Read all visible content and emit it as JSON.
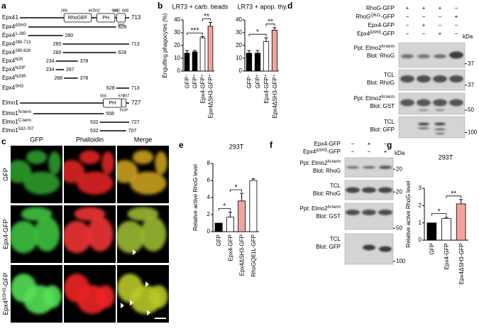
{
  "panel_labels": [
    "a",
    "b",
    "c",
    "d",
    "e",
    "f",
    "g"
  ],
  "constructs": {
    "epx4": {
      "name": {
        "pre": "Epx4"
      },
      "start": 1,
      "end": 713,
      "ticks": [
        288,
        467,
        502,
        620,
        632,
        688
      ],
      "domains": [
        {
          "label": "RhoGEF",
          "from": 288,
          "to": 467
        },
        {
          "label": "PH",
          "from": 502,
          "to": 620
        },
        {
          "label": "SH3",
          "from": 632,
          "to": 688
        }
      ],
      "rows": [
        {
          "name": {
            "pre": "Epx4",
            "sup": "ΔSH3"
          },
          "start": null,
          "end": 628
        },
        {
          "name": {
            "pre": "Epx4",
            "sup": "1-280"
          },
          "start": null,
          "end": 280
        },
        {
          "name": {
            "pre": "Epx4",
            "sup": "280-713"
          },
          "start": 280,
          "end": 713
        },
        {
          "name": {
            "pre": "Epx4",
            "sup": "280-628"
          },
          "start": 280,
          "end": 628
        },
        {
          "name": {
            "pre": "Epx4",
            "sup": "N20"
          },
          "start": 234,
          "end": 378
        },
        {
          "name": {
            "pre": "Epx4",
            "sup": "N20F"
          },
          "start": 234,
          "end": 287
        },
        {
          "name": {
            "pre": "Epx4",
            "sup": "N20R"
          },
          "start": 288,
          "end": 378
        },
        {
          "name": {
            "pre": "Epx4",
            "sup": "SH3"
          },
          "start": 628,
          "end": 713
        }
      ]
    },
    "elmo1": {
      "name": {
        "pre": "Elmo1"
      },
      "start": 1,
      "end": 727,
      "ticks": [
        555,
        676,
        707
      ],
      "domains": [
        {
          "label": "PH",
          "from": 555,
          "to": 676
        },
        {
          "label": "PxxP",
          "from": 676,
          "to": 707
        }
      ],
      "rows": [
        {
          "name": {
            "pre": "Elmo1",
            "sup": "N-term"
          },
          "start": null,
          "end": 558
        },
        {
          "name": {
            "pre": "Elmo1",
            "sup": "C-term"
          },
          "start": 532,
          "end": 727
        },
        {
          "name": {
            "pre": "Elmo1",
            "sup": "532-707"
          },
          "start": 532,
          "end": 707
        }
      ]
    }
  },
  "micrographs": {
    "columns": [
      "GFP",
      "Phalloidin",
      "Merge"
    ],
    "rows": [
      {
        "pre": "GFP"
      },
      {
        "pre": "Epx4-GFP"
      },
      {
        "pre": "Epx4",
        "sup": "ΔSH3",
        "post": "-GFP"
      }
    ]
  },
  "blot_d": {
    "unit": "kDa",
    "header": [
      {
        "label": {
          "pre": "RhoG-GFP"
        },
        "signs": [
          "+",
          "+",
          "+",
          "−"
        ]
      },
      {
        "label": {
          "pre": "RhoG",
          "sup": "Q61L",
          "post": "-GFP"
        },
        "signs": [
          "−",
          "−",
          "−",
          "+"
        ]
      },
      {
        "label": {
          "pre": "Epx4-GFP"
        },
        "signs": [
          "−",
          "+",
          "−",
          "−"
        ]
      },
      {
        "label": {
          "pre": "Epx4",
          "sup": "ΔSH3",
          "post": "-GFP"
        },
        "signs": [
          "−",
          "−",
          "+",
          "−"
        ]
      }
    ],
    "blots": [
      {
        "lines": [
          {
            "pre": "Ppt: Elmo2",
            "sup": "N-term"
          },
          {
            "pre": "Blot: RhoG"
          }
        ],
        "marker": 37
      },
      {
        "lines": [
          {
            "pre": "TCL"
          },
          {
            "pre": "Blot: RhoG"
          }
        ],
        "marker": 37
      },
      {
        "lines": [
          {
            "pre": "Ppt: Elmo2",
            "sup": "N-term"
          },
          {
            "pre": "Blot: GST"
          }
        ],
        "marker": 50
      },
      {
        "lines": [
          {
            "pre": "TCL"
          },
          {
            "pre": "Blot: GFP"
          }
        ],
        "marker": 100
      }
    ]
  },
  "blot_f": {
    "unit": "kDa",
    "header": [
      {
        "label": {
          "pre": "Epx4-GFP"
        },
        "signs": [
          "−",
          "+",
          "−"
        ]
      },
      {
        "label": {
          "pre": "Epx4",
          "sup": "ΔSH3",
          "post": "-GFP"
        },
        "signs": [
          "−",
          "−",
          "+"
        ]
      }
    ],
    "blots": [
      {
        "lines": [
          {
            "pre": "Ppt: Elmo2",
            "sup": "N-term"
          },
          {
            "pre": "Blot: RhoG"
          }
        ],
        "marker": 20
      },
      {
        "lines": [
          {
            "pre": "TCL"
          },
          {
            "pre": "Blot: RhoG"
          }
        ],
        "marker": 20
      },
      {
        "lines": [
          {
            "pre": "Ppt: Elmo2",
            "sup": "N-term"
          },
          {
            "pre": "Blot: GST"
          }
        ],
        "marker": 50
      },
      {
        "lines": [
          {
            "pre": "TCL"
          },
          {
            "pre": "Blot: GFP"
          }
        ],
        "marker": 100
      }
    ]
  },
  "chart_data": [
    {
      "type": "bar",
      "title": "LR73 + carb. beads",
      "y_label": "Engulfing phagocytes (%)",
      "categories": [
        "GFP⁻",
        "GFP⁺",
        "Epx4-GFP⁺",
        "Epx4ΔSH3-GFP⁺"
      ],
      "values": [
        14,
        15,
        26,
        35
      ],
      "errors": [
        2,
        1,
        1,
        3
      ],
      "colors": [
        "#000000",
        "#000000",
        "#ffffff",
        "#f4a39c"
      ],
      "ylim": [
        0,
        40
      ],
      "yticks": [
        0,
        10,
        20,
        30,
        40
      ],
      "annotations": [
        "***",
        "**"
      ]
    },
    {
      "type": "bar",
      "title": "LR73 + apop. thy.",
      "categories": [
        "GFP⁻",
        "GFP⁺",
        "Epx4-GFP⁺",
        "Epx4ΔSH3-GFP⁺"
      ],
      "values": [
        14,
        14,
        23,
        32
      ],
      "errors": [
        2,
        2,
        3,
        2
      ],
      "colors": [
        "#000000",
        "#000000",
        "#ffffff",
        "#f4a39c"
      ],
      "ylim": [
        0,
        40
      ],
      "yticks": [
        0,
        10,
        20,
        30,
        40
      ],
      "annotations": [
        "*",
        "**"
      ]
    },
    {
      "type": "bar",
      "title": "293T",
      "y_label": "Relative active RhoG level",
      "categories": [
        "GFP",
        "Epx4-GFP",
        "Epx4ΔSH3-GFP",
        "RhoGQ61L-GFP"
      ],
      "values": [
        1,
        1.7,
        3.6,
        6
      ],
      "errors": [
        null,
        0.6,
        0.9,
        0.2
      ],
      "colors": [
        "#000000",
        "#ffffff",
        "#f4a39c",
        "#ffffff"
      ],
      "ylim": [
        0,
        8
      ],
      "yticks": [
        0,
        2,
        4,
        6,
        8
      ],
      "annotations": [
        "*",
        "*"
      ]
    },
    {
      "type": "bar",
      "title": "293T",
      "y_label": "Relative active RhoG level",
      "categories": [
        "GFP",
        "Epx4-GFP",
        "Epx4ΔSH3-GFP"
      ],
      "values": [
        1,
        1.25,
        2.1
      ],
      "errors": [
        null,
        0.08,
        0.25
      ],
      "colors": [
        "#000000",
        "#ffffff",
        "#f4a39c"
      ],
      "ylim": [
        0,
        3
      ],
      "yticks": [
        0,
        1,
        2,
        3
      ],
      "annotations": [
        "*",
        "**"
      ]
    }
  ]
}
